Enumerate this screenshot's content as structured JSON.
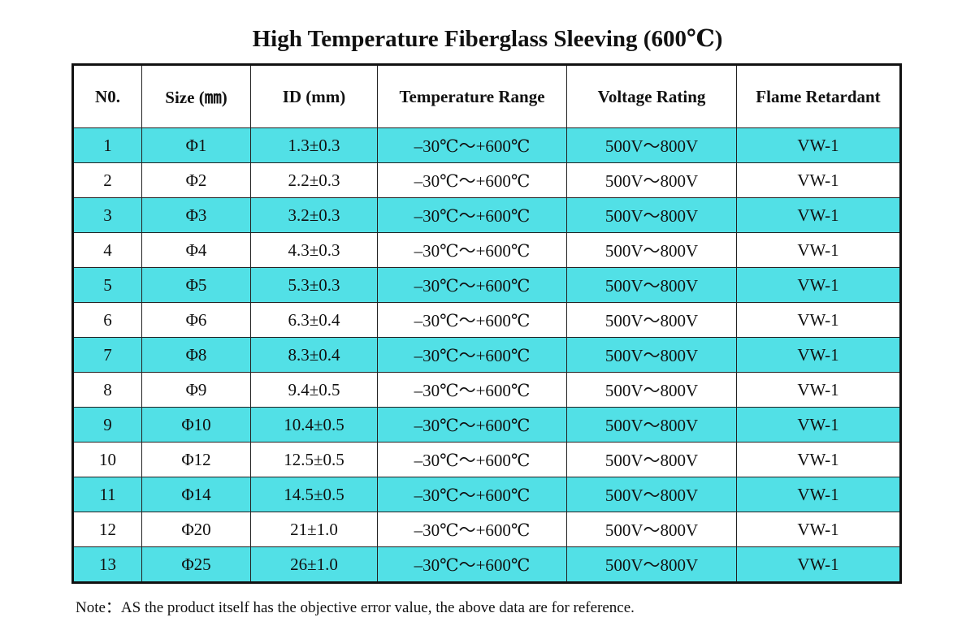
{
  "header": {
    "title": "High Temperature Fiberglass Sleeving (600℃)"
  },
  "table": {
    "columns": [
      "N0.",
      "Size (㎜)",
      "ID (mm)",
      "Temperature Range",
      "Voltage Rating",
      "Flame Retardant"
    ],
    "rows": [
      [
        "1",
        "Φ1",
        "1.3±0.3",
        "–30℃～+600℃",
        "500V～800V",
        "VW-1"
      ],
      [
        "2",
        "Φ2",
        "2.2±0.3",
        "–30℃～+600℃",
        "500V～800V",
        "VW-1"
      ],
      [
        "3",
        "Φ3",
        "3.2±0.3",
        "–30℃～+600℃",
        "500V～800V",
        "VW-1"
      ],
      [
        "4",
        "Φ4",
        "4.3±0.3",
        "–30℃～+600℃",
        "500V～800V",
        "VW-1"
      ],
      [
        "5",
        "Φ5",
        "5.3±0.3",
        "–30℃～+600℃",
        "500V～800V",
        "VW-1"
      ],
      [
        "6",
        "Φ6",
        "6.3±0.4",
        "–30℃～+600℃",
        "500V～800V",
        "VW-1"
      ],
      [
        "7",
        "Φ8",
        "8.3±0.4",
        "–30℃～+600℃",
        "500V～800V",
        "VW-1"
      ],
      [
        "8",
        "Φ9",
        "9.4±0.5",
        "–30℃～+600℃",
        "500V～800V",
        "VW-1"
      ],
      [
        "9",
        "Φ10",
        "10.4±0.5",
        "–30℃～+600℃",
        "500V～800V",
        "VW-1"
      ],
      [
        "10",
        "Φ12",
        "12.5±0.5",
        "–30℃～+600℃",
        "500V～800V",
        "VW-1"
      ],
      [
        "11",
        "Φ14",
        "14.5±0.5",
        "–30℃～+600℃",
        "500V～800V",
        "VW-1"
      ],
      [
        "12",
        "Φ20",
        "21±1.0",
        "–30℃～+600℃",
        "500V～800V",
        "VW-1"
      ],
      [
        "13",
        "Φ25",
        "26±1.0",
        "–30℃～+600℃",
        "500V～800V",
        "VW-1"
      ]
    ]
  },
  "note": "Note：AS the product itself has the objective error value, the above data are for reference."
}
